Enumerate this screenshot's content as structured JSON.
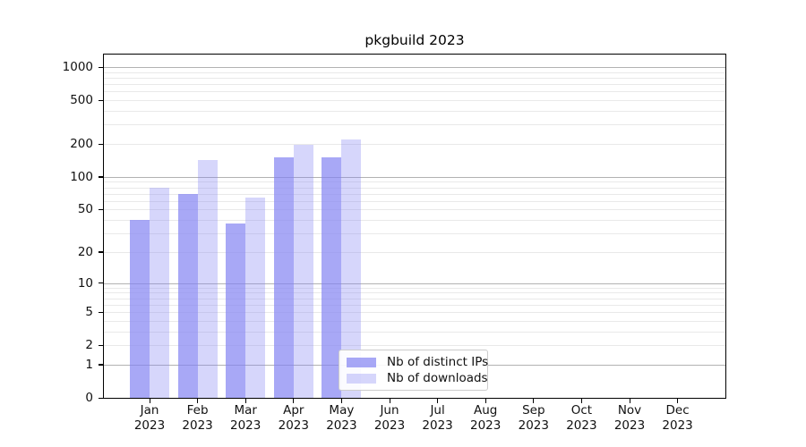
{
  "chart_data": {
    "type": "bar",
    "title": "pkgbuild 2023",
    "x_categories": [
      "Jan",
      "Feb",
      "Mar",
      "Apr",
      "May",
      "Jun",
      "Jul",
      "Aug",
      "Sep",
      "Oct",
      "Nov",
      "Dec"
    ],
    "x_year": "2023",
    "y_scale": "log10(value+1)",
    "y_ticks": [
      0,
      1,
      2,
      5,
      10,
      20,
      50,
      100,
      200,
      500,
      1000
    ],
    "y_major_gridlines": [
      1,
      10,
      100,
      1000
    ],
    "y_minor_gridlines": [
      2,
      3,
      4,
      5,
      6,
      7,
      8,
      9,
      20,
      30,
      40,
      50,
      60,
      70,
      80,
      90,
      200,
      300,
      400,
      500,
      600,
      700,
      800,
      900
    ],
    "ylim": [
      0,
      1310
    ],
    "grid": "on",
    "legend_position": "lower center-left",
    "series": [
      {
        "name": "Nb of distinct IPs",
        "color": "rgba(131,131,242,0.70)",
        "values": [
          40,
          70,
          37,
          152,
          152,
          null,
          null,
          null,
          null,
          null,
          null,
          null
        ]
      },
      {
        "name": "Nb of downloads",
        "color": "rgba(131,131,242,0.33)",
        "values": [
          80,
          143,
          65,
          197,
          221,
          null,
          null,
          null,
          null,
          null,
          null,
          null
        ]
      }
    ]
  },
  "colors": {
    "bar_base": "#8383f2",
    "grid_major": "#b2b2b2",
    "grid_minor": "#e9e9e9",
    "spine": "#000000",
    "text": "#111111",
    "legend_border": "#cccccc",
    "legend_bg": "rgba(255,255,255,0.9)"
  }
}
